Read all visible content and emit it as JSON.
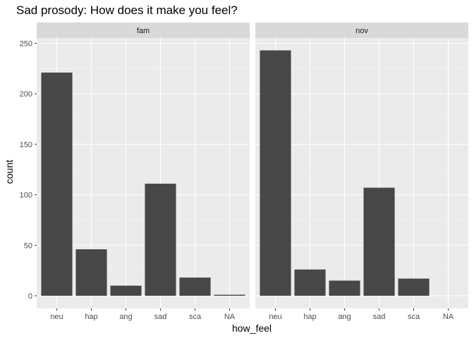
{
  "chart_data": {
    "type": "bar",
    "title": "Sad prosody: How does it make you feel?",
    "xlabel": "how_feel",
    "ylabel": "count",
    "categories": [
      "neu",
      "hap",
      "ang",
      "sad",
      "sca",
      "NA"
    ],
    "ylim": [
      0,
      250
    ],
    "yticks": [
      "0",
      "50",
      "100",
      "150",
      "200",
      "250"
    ],
    "ytick_values": [
      0,
      50,
      100,
      150,
      200,
      250
    ],
    "grid": true,
    "panels": [
      {
        "name": "fam",
        "values": [
          221,
          46,
          10,
          111,
          18,
          1
        ]
      },
      {
        "name": "nov",
        "values": [
          243,
          26,
          15,
          107,
          17,
          0
        ]
      }
    ],
    "colors": {
      "bar": "#474747",
      "panel_bg": "#ebebeb",
      "strip_bg": "#d9d9d9",
      "grid_major": "#ffffff",
      "grid_minor": "#f5f5f5",
      "tick": "#333333"
    }
  }
}
